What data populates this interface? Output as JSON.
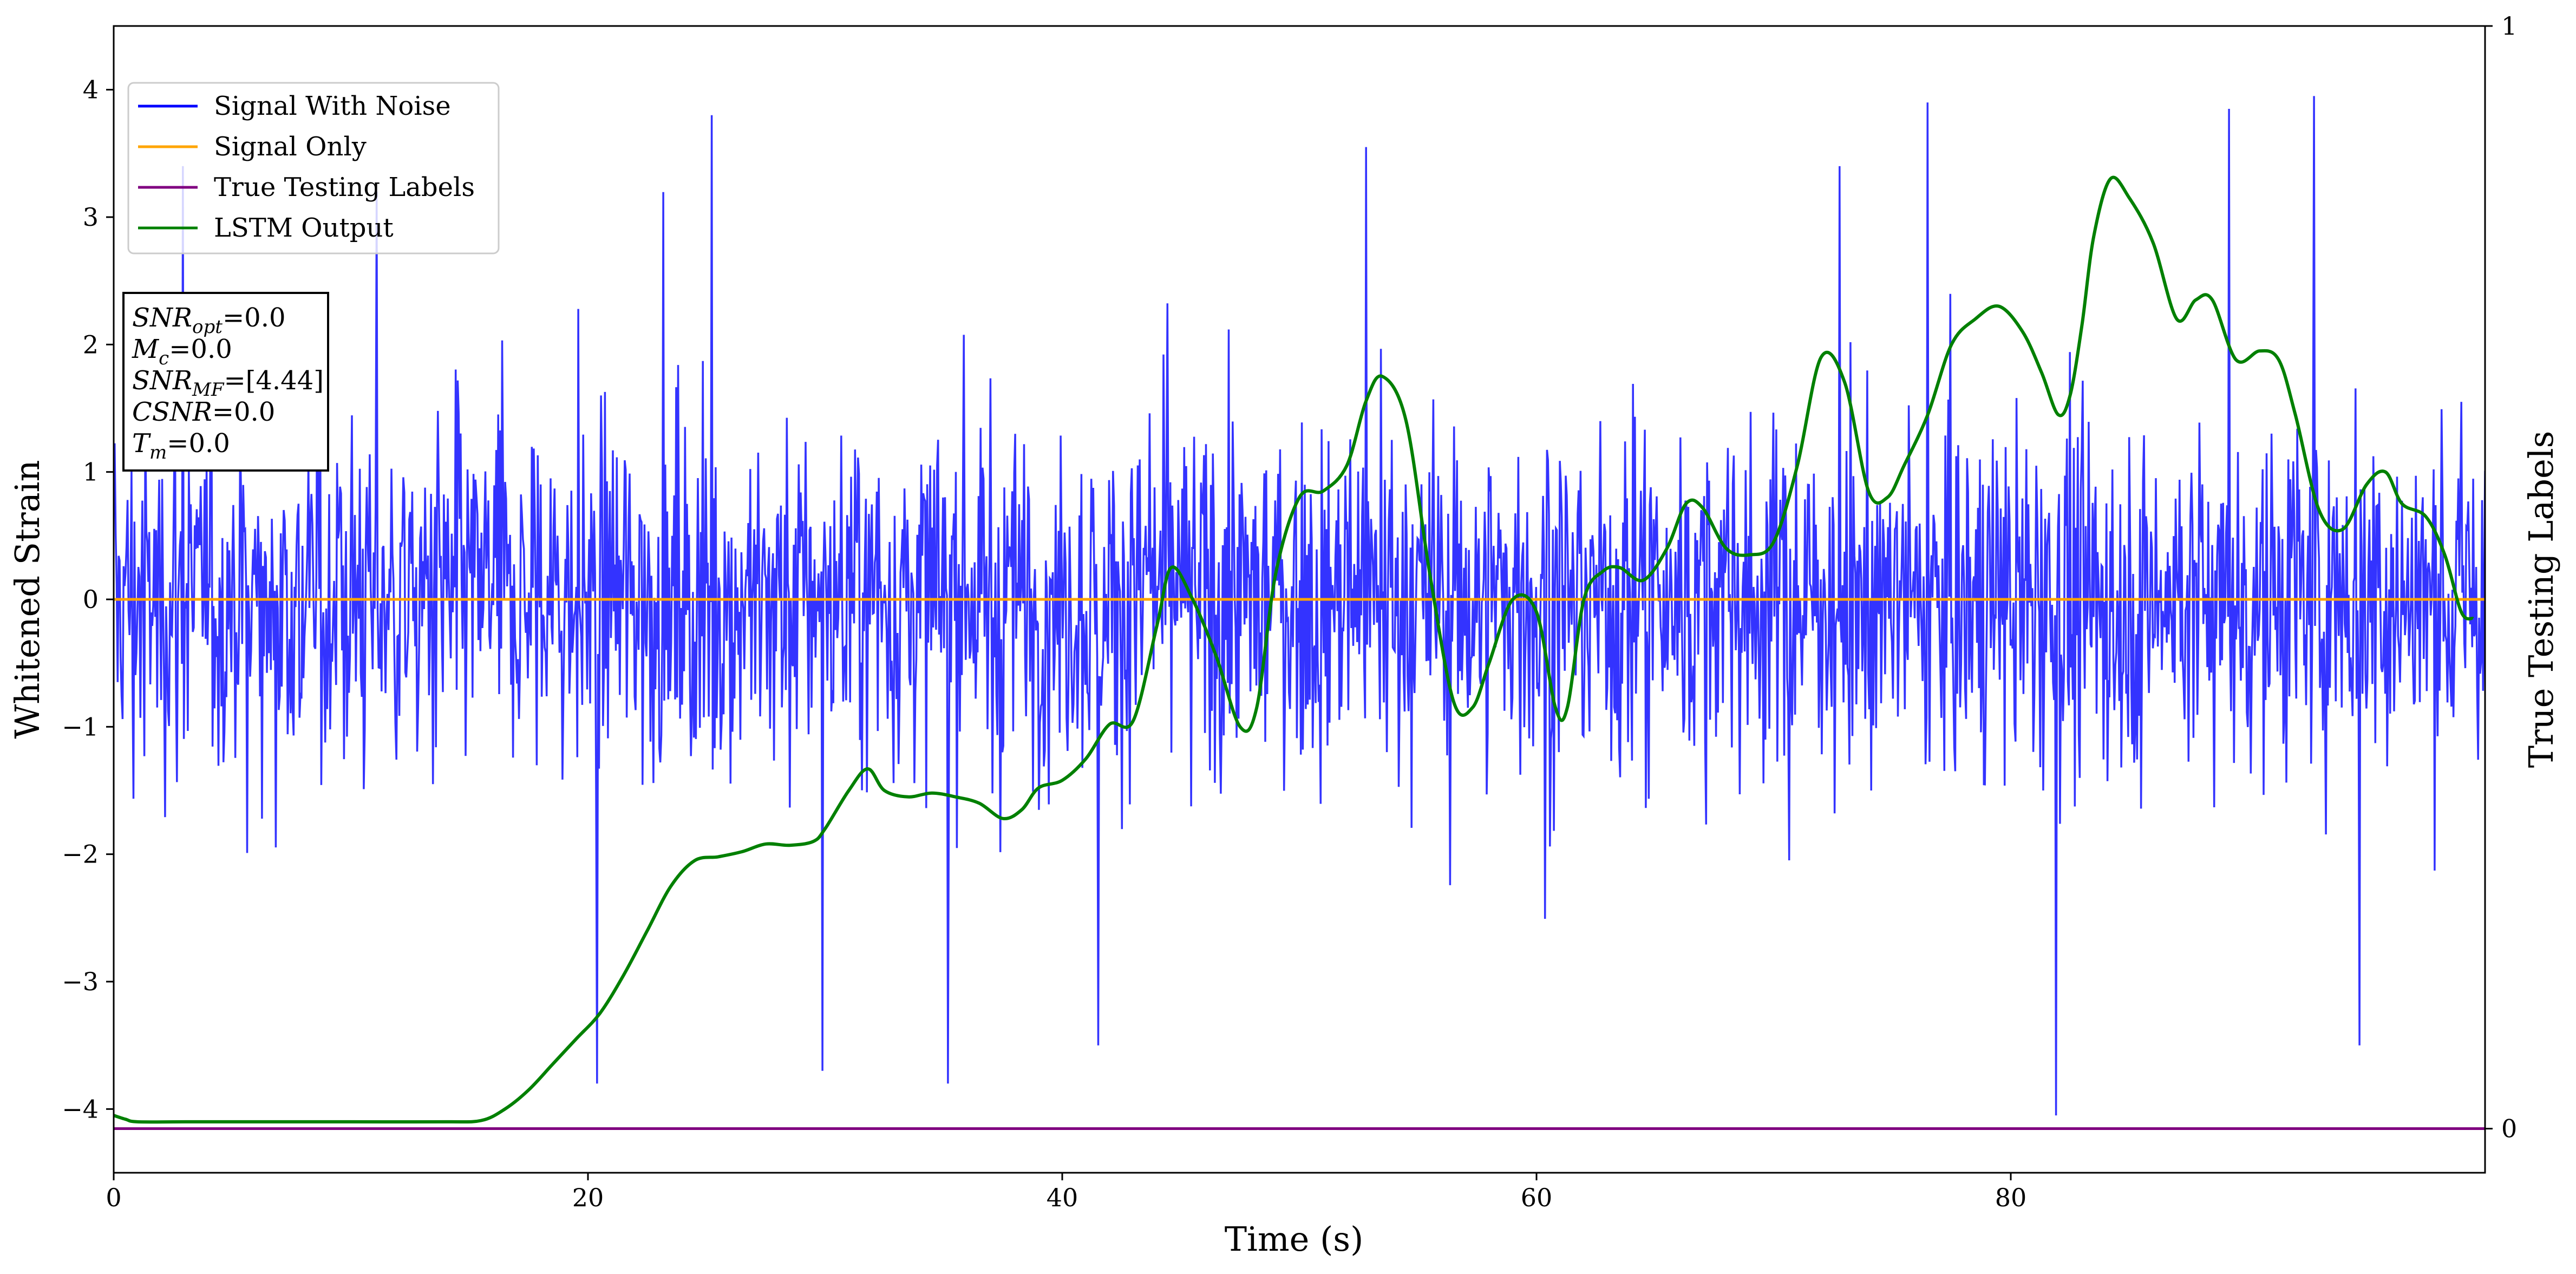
{
  "chart_data": {
    "type": "line",
    "xlabel": "Time (s)",
    "ylabel": "Whitened Strain",
    "y2label": "True Testing Labels",
    "xlim": [
      0,
      100
    ],
    "ylim": [
      -4.5,
      4.5
    ],
    "y2lim": [
      -0.04,
      1.0
    ],
    "xticks": [
      0,
      20,
      40,
      60,
      80
    ],
    "yticks": [
      -4,
      -3,
      -2,
      -1,
      0,
      1,
      2,
      3,
      4
    ],
    "y2ticks": [
      0,
      1
    ],
    "legend_position": "upper-left",
    "series": [
      {
        "name": "Signal With Noise",
        "axis": "left",
        "color": "#0000ff",
        "style": "dense-noise",
        "sample_count": 2400,
        "envelope_low": [
          -1.5,
          1.5
        ],
        "notable_spikes": [
          {
            "x": 2.9,
            "y": 3.4
          },
          {
            "x": 11.1,
            "y": 3.2
          },
          {
            "x": 20.4,
            "y": -3.8
          },
          {
            "x": 25.2,
            "y": 3.8
          },
          {
            "x": 29.9,
            "y": -3.7
          },
          {
            "x": 35.2,
            "y": -3.8
          },
          {
            "x": 41.5,
            "y": -3.5
          },
          {
            "x": 52.8,
            "y": 3.55
          },
          {
            "x": 76.5,
            "y": 3.9
          },
          {
            "x": 81.9,
            "y": -4.05
          },
          {
            "x": 89.2,
            "y": 3.85
          },
          {
            "x": 92.8,
            "y": 3.95
          },
          {
            "x": 94.7,
            "y": -3.5
          }
        ]
      },
      {
        "name": "Signal Only",
        "axis": "left",
        "color": "#ffa500",
        "x": [
          0,
          100
        ],
        "y": [
          0,
          0
        ]
      },
      {
        "name": "True Testing Labels",
        "axis": "right",
        "color": "#800080",
        "x": [
          0,
          100
        ],
        "y": [
          0,
          0
        ]
      },
      {
        "name": "LSTM Output",
        "axis": "left",
        "color": "#008000",
        "x": [
          0,
          0.5,
          1,
          3,
          6,
          10,
          14,
          15.5,
          16.5,
          17.5,
          18.5,
          19.5,
          20.5,
          21.5,
          22.5,
          23.5,
          24.5,
          25.5,
          26.5,
          27.5,
          28.5,
          29.5,
          30,
          31,
          31.8,
          32.5,
          33.5,
          34.5,
          35.5,
          36.5,
          37.5,
          38.3,
          39,
          40,
          41,
          42,
          43,
          44,
          44.6,
          45.5,
          46.5,
          47.5,
          48.2,
          49,
          50,
          51,
          52,
          52.8,
          53.5,
          54.5,
          55.5,
          56.5,
          57.3,
          58,
          59,
          60,
          60.8,
          61.3,
          62,
          62.8,
          63.5,
          64.5,
          65.5,
          66.3,
          67,
          68,
          69,
          70,
          71,
          72,
          73,
          74,
          74.8,
          75.5,
          76.5,
          77.5,
          78.5,
          79.5,
          80.5,
          81.3,
          82,
          82.5,
          83,
          83.5,
          84.2,
          85,
          86,
          87,
          87.8,
          88.5,
          89.5,
          90.5,
          91.3,
          92,
          93,
          94,
          95,
          95.8,
          96.5,
          97.5,
          98.3,
          99,
          99.5
        ],
        "y": [
          -4.05,
          -4.08,
          -4.1,
          -4.1,
          -4.1,
          -4.1,
          -4.1,
          -4.09,
          -4.0,
          -3.85,
          -3.65,
          -3.45,
          -3.25,
          -2.95,
          -2.6,
          -2.25,
          -2.05,
          -2.02,
          -1.98,
          -1.92,
          -1.93,
          -1.9,
          -1.8,
          -1.5,
          -1.33,
          -1.5,
          -1.55,
          -1.52,
          -1.55,
          -1.6,
          -1.72,
          -1.65,
          -1.48,
          -1.42,
          -1.25,
          -0.98,
          -0.95,
          -0.2,
          0.25,
          0.0,
          -0.45,
          -1.0,
          -0.85,
          0.2,
          0.8,
          0.85,
          1.05,
          1.55,
          1.75,
          1.4,
          0.2,
          -0.8,
          -0.85,
          -0.5,
          0.0,
          -0.1,
          -0.85,
          -0.85,
          0.0,
          0.22,
          0.25,
          0.15,
          0.4,
          0.75,
          0.72,
          0.4,
          0.35,
          0.45,
          1.05,
          1.9,
          1.7,
          0.85,
          0.8,
          1.05,
          1.45,
          2.0,
          2.2,
          2.3,
          2.1,
          1.78,
          1.45,
          1.6,
          2.15,
          2.85,
          3.3,
          3.15,
          2.8,
          2.2,
          2.35,
          2.35,
          1.88,
          1.95,
          1.88,
          1.45,
          0.7,
          0.55,
          0.9,
          1.0,
          0.75,
          0.65,
          0.35,
          -0.1,
          -0.15
        ]
      }
    ]
  },
  "info_box": {
    "snr_opt_value": "=0.0",
    "mc_value": "=0.0",
    "snr_mf_value": "=[4.44]",
    "csnr_value": "=0.0",
    "tm_value": "=0.0",
    "snr_label": "SNR",
    "opt_sub": "opt",
    "mf_sub": "MF",
    "m_label": "M",
    "c_sub": "c",
    "csnr_label": "CSNR",
    "t_label": "T",
    "m_sub": "m"
  }
}
